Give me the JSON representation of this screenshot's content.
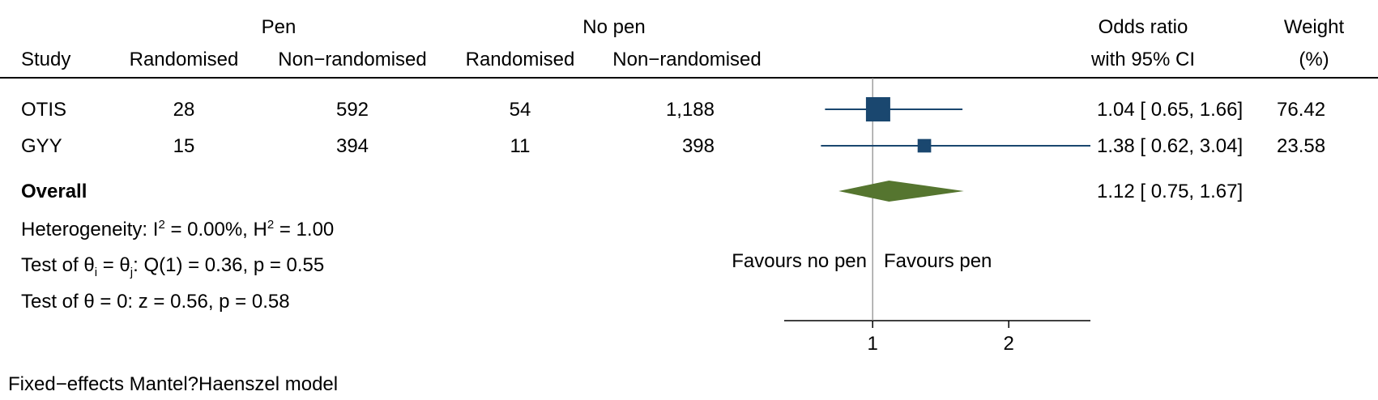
{
  "header": {
    "group1": "Pen",
    "group2": "No pen",
    "study": "Study",
    "rand1": "Randomised",
    "nonrand1": "Non−randomised",
    "rand2": "Randomised",
    "nonrand2": "Non−randomised",
    "or_line1": "Odds ratio",
    "or_line2": "with 95% CI",
    "weight_line1": "Weight",
    "weight_line2": "(%)"
  },
  "overall": {
    "label": "Overall",
    "ci_text": "1.12 [ 0.75,  1.67]"
  },
  "stats": {
    "het_prefix": "Heterogeneity: I",
    "het_sup1": "2",
    "het_mid": " = 0.00%, H",
    "het_sup2": "2",
    "het_end": " = 1.00",
    "q_prefix": "Test of θ",
    "q_sub1": "i",
    "q_mid": " = θ",
    "q_sub2": "j",
    "q_end": ": Q(1) = 0.36, p = 0.55",
    "z_text": "Test of θ = 0: z = 0.56, p = 0.58"
  },
  "favours": {
    "left": "Favours no pen",
    "right": "Favours pen"
  },
  "footer": "Fixed−effects Mantel?Haenszel model",
  "colors": {
    "study_marker": "#1a476f",
    "overall_diamond": "#55752f",
    "ref_line": "#888888"
  },
  "chart_data": {
    "type": "forest",
    "axis": {
      "xmin": 0.35,
      "xmax": 2.6,
      "ticks": [
        1,
        2
      ],
      "null_value": 1
    },
    "studies": [
      {
        "name": "OTIS",
        "pen_rand": "28",
        "pen_nonrand": "592",
        "nopen_rand": "54",
        "nopen_nonrand": "1,188",
        "or": 1.04,
        "lower": 0.65,
        "upper": 1.66,
        "ci_text": "1.04 [ 0.65,  1.66]",
        "weight": 76.42,
        "weight_text": "76.42"
      },
      {
        "name": "GYY",
        "pen_rand": "15",
        "pen_nonrand": "394",
        "nopen_rand": "11",
        "nopen_nonrand": "398",
        "or": 1.38,
        "lower": 0.62,
        "upper": 3.04,
        "ci_text": "1.38 [ 0.62,  3.04]",
        "weight": 23.58,
        "weight_text": "23.58"
      }
    ],
    "overall": {
      "or": 1.12,
      "lower": 0.75,
      "upper": 1.67
    }
  }
}
